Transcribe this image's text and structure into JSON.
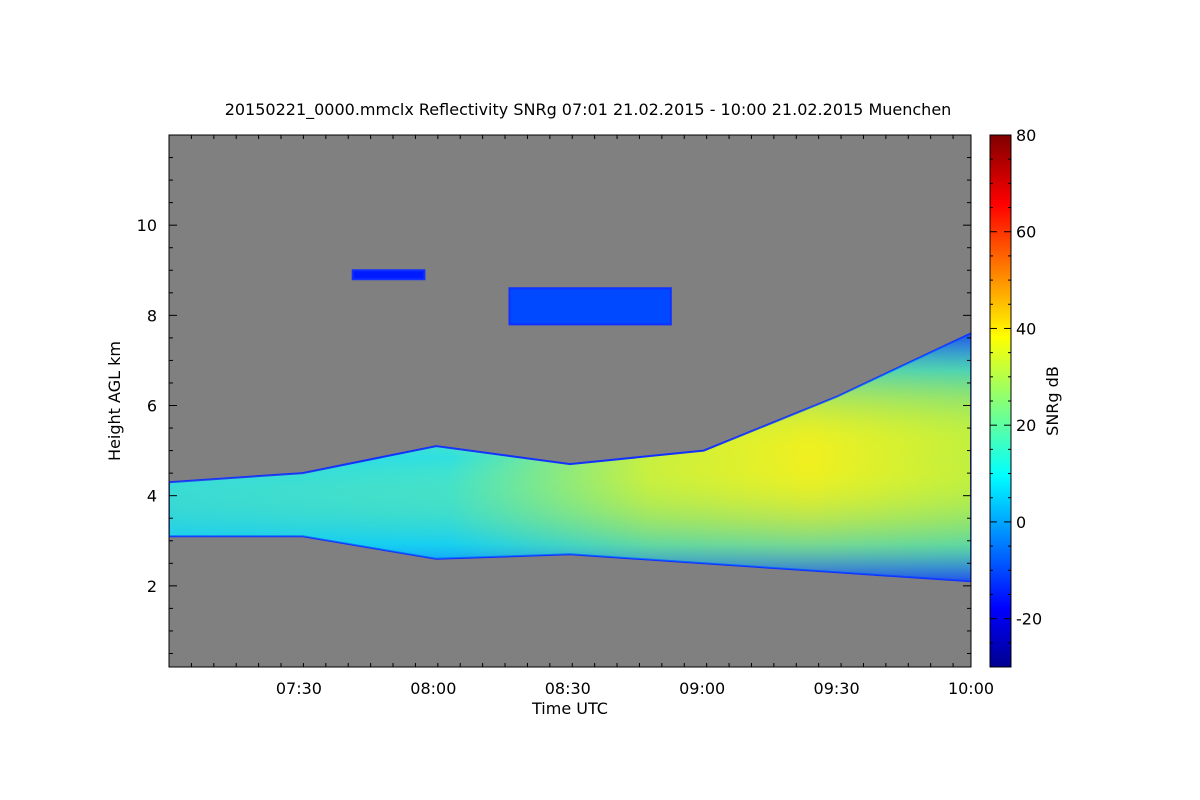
{
  "chart_data": {
    "type": "heatmap",
    "title": "20150221_0000.mmclx Reflectivity SNRg   07:01 21.02.2015 - 10:00 21.02.2015 Muenchen",
    "xlabel": "Time UTC",
    "ylabel": "Height AGL km",
    "x_range": [
      "07:01",
      "10:00"
    ],
    "x_ticks": [
      "07:30",
      "08:00",
      "08:30",
      "09:00",
      "09:30",
      "10:00"
    ],
    "ylim": [
      0.2,
      12.0
    ],
    "y_ticks": [
      2,
      4,
      6,
      8,
      10
    ],
    "colorbar": {
      "label": "SNRg dB",
      "range": [
        -30,
        80
      ],
      "ticks": [
        -20,
        0,
        20,
        40,
        60,
        80
      ],
      "colormap": "jet"
    },
    "background_color": "#808080",
    "layers": [
      {
        "t_start": "07:01",
        "t_end": "10:00",
        "base_km": [
          3.1,
          3.1,
          2.6,
          2.7,
          2.5,
          2.3,
          2.1
        ],
        "top_km": [
          4.3,
          4.5,
          5.1,
          4.7,
          5.0,
          6.2,
          7.6
        ],
        "peak_snr_db": 40
      },
      {
        "t_start": "07:42",
        "t_end": "07:58",
        "base_km": [
          8.8
        ],
        "top_km": [
          9.0
        ],
        "peak_snr_db": -15
      },
      {
        "t_start": "08:17",
        "t_end": "08:53",
        "base_km": [
          7.8
        ],
        "top_km": [
          8.6
        ],
        "peak_snr_db": -10
      }
    ]
  }
}
